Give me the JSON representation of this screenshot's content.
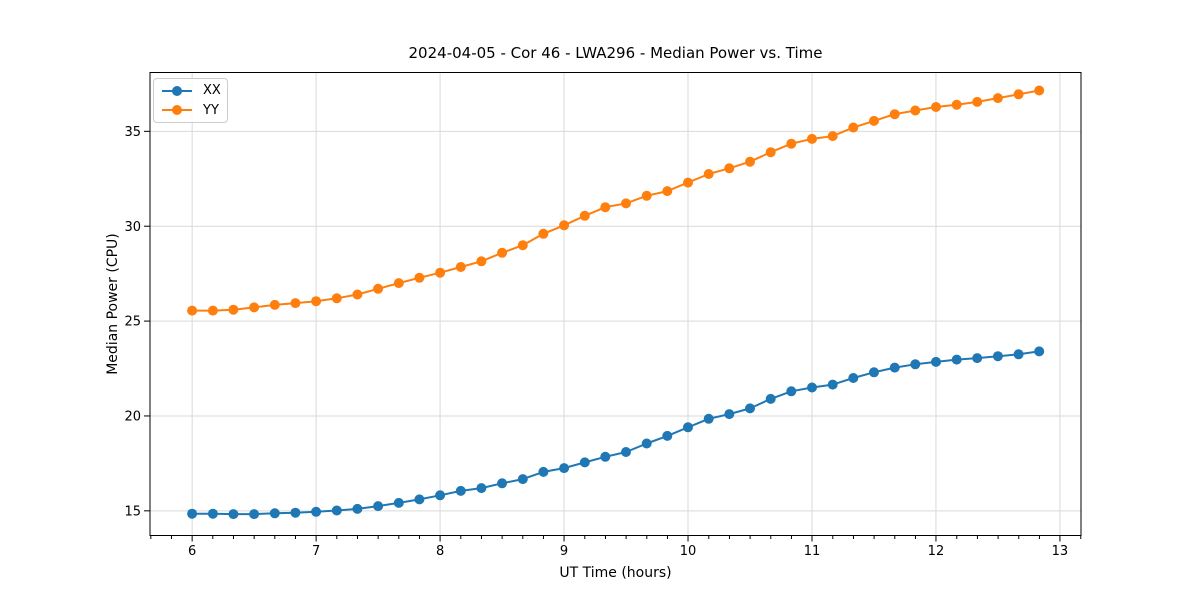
{
  "chart_data": {
    "type": "line",
    "title": "2024-04-05 - Cor 46 - LWA296 - Median Power vs. Time",
    "xlabel": "UT Time (hours)",
    "ylabel": "Median Power (CPU)",
    "xlim": [
      5.66,
      13.17
    ],
    "ylim": [
      13.7,
      38.1
    ],
    "xticks": [
      6,
      7,
      8,
      9,
      10,
      11,
      12,
      13
    ],
    "yticks": [
      15,
      20,
      25,
      30,
      35
    ],
    "x_minor_interval": 0.1667,
    "grid": "major",
    "grid_color": "#d9d9d9",
    "axis_color": "#000000",
    "background": "#ffffff",
    "legend_position": "upper-left",
    "x": [
      6.0,
      6.167,
      6.333,
      6.5,
      6.667,
      6.833,
      7.0,
      7.167,
      7.333,
      7.5,
      7.667,
      7.833,
      8.0,
      8.167,
      8.333,
      8.5,
      8.667,
      8.833,
      9.0,
      9.167,
      9.333,
      9.5,
      9.667,
      9.833,
      10.0,
      10.167,
      10.333,
      10.5,
      10.667,
      10.833,
      11.0,
      11.167,
      11.333,
      11.5,
      11.667,
      11.833,
      12.0,
      12.167,
      12.333,
      12.5,
      12.667,
      12.833
    ],
    "series": [
      {
        "name": "XX",
        "color": "#1f77b4",
        "values": [
          14.85,
          14.85,
          14.83,
          14.83,
          14.87,
          14.9,
          14.95,
          15.02,
          15.1,
          15.25,
          15.42,
          15.6,
          15.82,
          16.05,
          16.2,
          16.45,
          16.67,
          17.05,
          17.25,
          17.55,
          17.85,
          18.1,
          18.55,
          18.95,
          19.4,
          19.85,
          20.1,
          20.4,
          20.9,
          21.3,
          21.5,
          21.65,
          22.0,
          22.3,
          22.55,
          22.72,
          22.85,
          22.97,
          23.05,
          23.15,
          23.25,
          23.4
        ]
      },
      {
        "name": "YY",
        "color": "#ff7f0e",
        "values": [
          25.55,
          25.55,
          25.6,
          25.72,
          25.85,
          25.95,
          26.05,
          26.2,
          26.4,
          26.7,
          27.0,
          27.28,
          27.55,
          27.85,
          28.15,
          28.6,
          29.0,
          29.6,
          30.05,
          30.55,
          31.0,
          31.2,
          31.6,
          31.85,
          32.3,
          32.75,
          33.05,
          33.4,
          33.9,
          34.35,
          34.6,
          34.75,
          35.2,
          35.55,
          35.9,
          36.1,
          36.28,
          36.4,
          36.55,
          36.75,
          36.95,
          37.15
        ]
      }
    ]
  }
}
